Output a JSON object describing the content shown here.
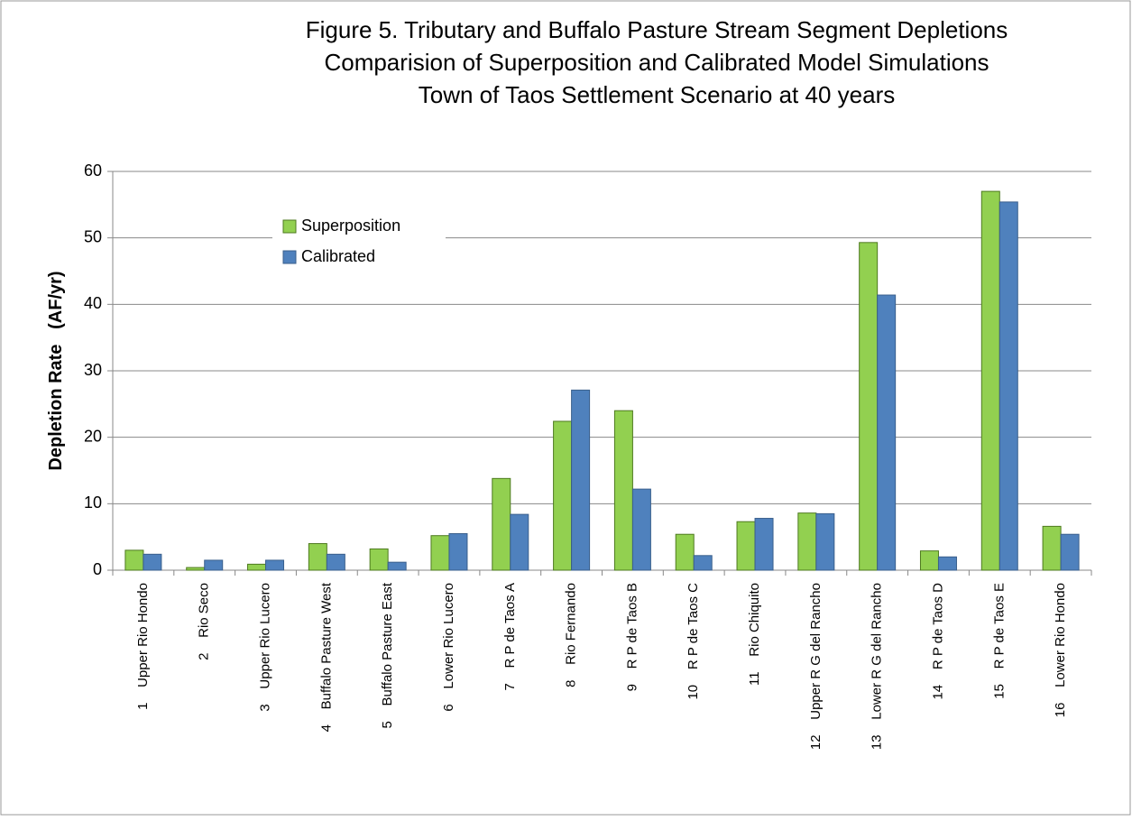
{
  "chart_data": {
    "type": "bar",
    "title": [
      "Figure 5. Tributary and Buffalo Pasture Stream Segment Depletions",
      "Comparision of Superposition and Calibrated Model Simulations",
      "Town of Taos Settlement Scenario at 40 years"
    ],
    "y_label": "Depletion Rate   (AF/yr)",
    "categories": [
      "1    Upper Rio Hondo",
      "2    Rio Seco",
      "3    Upper Rio Lucero",
      "4    Buffalo Pasture West",
      "5    Buffalo Pasture East",
      "6    Lower Rio Lucero",
      "7    R P de Taos A",
      "8    Rio Fernando",
      "9    R P de Taos B",
      "10    R P de Taos C",
      "11    Rio Chiquito",
      "12    Upper R G del Rancho",
      "13    Lower R G del Rancho",
      "14    R P de Taos D",
      "15    R P de Taos E",
      "16    Lower Rio Hondo"
    ],
    "series": [
      {
        "name": "Superposition",
        "color": "#92d050",
        "values": [
          3.0,
          0.4,
          0.9,
          4.0,
          3.2,
          5.2,
          13.8,
          22.4,
          24.0,
          5.4,
          7.3,
          8.6,
          49.3,
          2.9,
          57.0,
          6.6
        ]
      },
      {
        "name": "Calibrated",
        "color": "#4f81bd",
        "values": [
          2.4,
          1.5,
          1.5,
          2.4,
          1.2,
          5.5,
          8.4,
          27.1,
          12.2,
          2.2,
          7.8,
          8.5,
          41.4,
          2.0,
          55.4,
          5.4
        ]
      }
    ],
    "ylim": [
      0,
      60
    ],
    "yticks": [
      0,
      10,
      20,
      30,
      40,
      50,
      60
    ],
    "grid": true
  }
}
